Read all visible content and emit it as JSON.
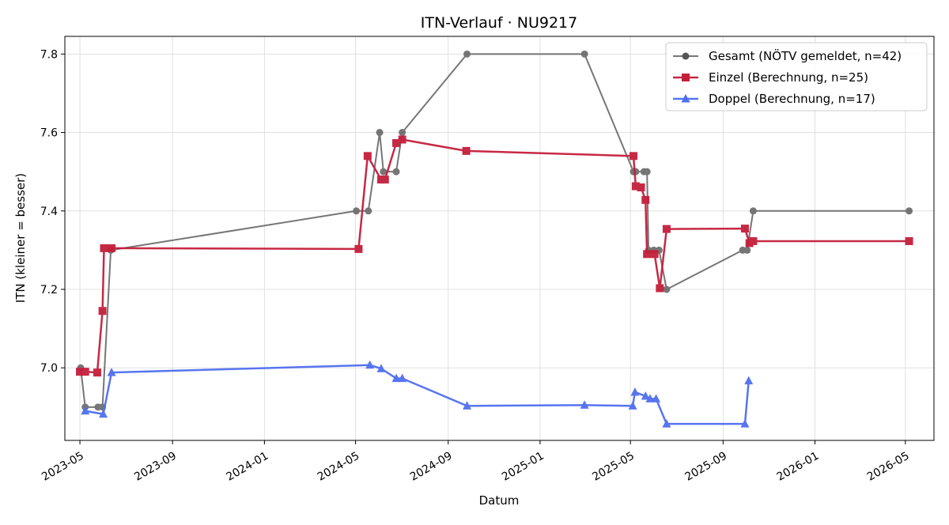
{
  "chart_data": {
    "type": "line",
    "title": "ITN-Verlauf · NU9217",
    "xlabel": "Datum",
    "ylabel": "ITN  (kleiner = besser)",
    "x_ticks": [
      "2023-05",
      "2023-09",
      "2024-01",
      "2024-05",
      "2024-09",
      "2025-01",
      "2025-05",
      "2025-09",
      "2026-01",
      "2026-05"
    ],
    "y_ticks": [
      "7.0",
      "7.2",
      "7.4",
      "7.6",
      "7.8"
    ],
    "xlim": [
      "2023-04-11",
      "2026-06-08"
    ],
    "ylim": [
      6.815,
      7.845
    ],
    "grid": true,
    "legend_position": "top-right",
    "series": [
      {
        "name": "Gesamt (NÖTV gemeldet, n=42)",
        "color": "#555555",
        "marker": "circle",
        "points": [
          [
            "2023-05-02",
            7.0
          ],
          [
            "2023-05-08",
            6.9
          ],
          [
            "2023-05-25",
            6.9
          ],
          [
            "2023-05-31",
            6.9
          ],
          [
            "2023-06-11",
            7.3
          ],
          [
            "2024-05-02",
            7.4
          ],
          [
            "2024-05-18",
            7.4
          ],
          [
            "2024-06-02",
            7.6
          ],
          [
            "2024-06-07",
            7.5
          ],
          [
            "2024-06-24",
            7.5
          ],
          [
            "2024-07-02",
            7.6
          ],
          [
            "2024-09-26",
            7.8
          ],
          [
            "2025-03-01",
            7.8
          ],
          [
            "2025-05-05",
            7.5
          ],
          [
            "2025-05-08",
            7.5
          ],
          [
            "2025-05-19",
            7.5
          ],
          [
            "2025-05-23",
            7.5
          ],
          [
            "2025-05-25",
            7.3
          ],
          [
            "2025-06-01",
            7.3
          ],
          [
            "2025-06-08",
            7.3
          ],
          [
            "2025-06-18",
            7.2
          ],
          [
            "2025-09-27",
            7.3
          ],
          [
            "2025-10-03",
            7.3
          ],
          [
            "2025-10-11",
            7.4
          ],
          [
            "2026-05-06",
            7.4
          ]
        ]
      },
      {
        "name": "Einzel (Berechnung, n=25)",
        "color": "#c41e3a",
        "marker": "square",
        "points": [
          [
            "2023-05-01",
            6.99
          ],
          [
            "2023-05-08",
            6.99
          ],
          [
            "2023-05-24",
            6.988
          ],
          [
            "2023-05-31",
            7.145
          ],
          [
            "2023-06-02",
            7.305
          ],
          [
            "2023-06-12",
            7.305
          ],
          [
            "2024-05-05",
            7.303
          ],
          [
            "2024-05-17",
            7.54
          ],
          [
            "2024-06-04",
            7.48
          ],
          [
            "2024-06-09",
            7.48
          ],
          [
            "2024-06-24",
            7.573
          ],
          [
            "2024-07-02",
            7.582
          ],
          [
            "2024-09-25",
            7.553
          ],
          [
            "2025-05-05",
            7.54
          ],
          [
            "2025-05-08",
            7.463
          ],
          [
            "2025-05-15",
            7.46
          ],
          [
            "2025-05-21",
            7.428
          ],
          [
            "2025-05-23",
            7.29
          ],
          [
            "2025-06-02",
            7.29
          ],
          [
            "2025-06-09",
            7.203
          ],
          [
            "2025-06-18",
            7.354
          ],
          [
            "2025-09-30",
            7.355
          ],
          [
            "2025-10-06",
            7.318
          ],
          [
            "2025-10-11",
            7.323
          ],
          [
            "2026-05-06",
            7.323
          ]
        ]
      },
      {
        "name": "Doppel (Berechnung, n=17)",
        "color": "#4f6ef0",
        "marker": "triangle",
        "points": [
          [
            "2023-05-08",
            6.89
          ],
          [
            "2023-06-01",
            6.882
          ],
          [
            "2023-06-12",
            6.988
          ],
          [
            "2024-05-20",
            7.007
          ],
          [
            "2024-06-04",
            6.998
          ],
          [
            "2024-06-24",
            6.973
          ],
          [
            "2024-07-02",
            6.973
          ],
          [
            "2024-09-26",
            6.903
          ],
          [
            "2025-03-01",
            6.905
          ],
          [
            "2025-05-04",
            6.903
          ],
          [
            "2025-05-07",
            6.938
          ],
          [
            "2025-05-21",
            6.928
          ],
          [
            "2025-05-27",
            6.921
          ],
          [
            "2025-06-04",
            6.921
          ],
          [
            "2025-06-18",
            6.857
          ],
          [
            "2025-09-30",
            6.857
          ],
          [
            "2025-10-05",
            6.967
          ]
        ]
      }
    ]
  }
}
